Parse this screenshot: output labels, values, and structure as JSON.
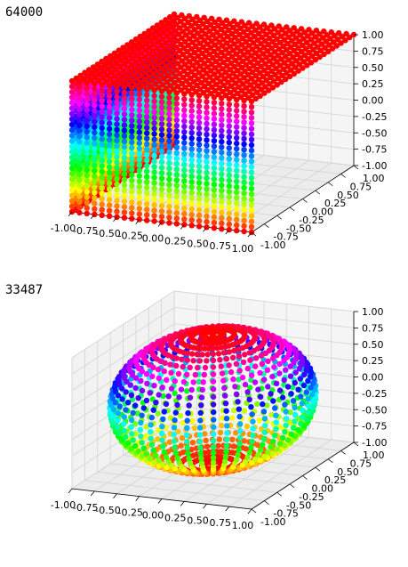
{
  "outputs": [
    {
      "text": "64000",
      "chart_data": {
        "type": "scatter3d",
        "shape": "cube",
        "point_count": 64000,
        "x_range": [
          -1.0,
          1.0
        ],
        "y_range": [
          -1.0,
          1.0
        ],
        "z_range": [
          -1.0,
          1.0
        ],
        "colormap": "hsv by z",
        "x_ticks": [
          "-1.00",
          "-0.75",
          "-0.50",
          "-0.25",
          "0.00",
          "0.25",
          "0.50",
          "0.75",
          "1.00"
        ],
        "y_ticks": [
          "-1.00",
          "-0.75",
          "-0.50",
          "-0.25",
          "0.00",
          "0.25",
          "0.50",
          "0.75",
          "1.00"
        ],
        "z_ticks": [
          "-1.00",
          "-0.75",
          "-0.50",
          "-0.25",
          "0.00",
          "0.25",
          "0.50",
          "0.75",
          "1.00"
        ],
        "grid": true
      }
    },
    {
      "text": "33487",
      "chart_data": {
        "type": "scatter3d",
        "shape": "sphere",
        "point_count": 33487,
        "x_range": [
          -1.0,
          1.0
        ],
        "y_range": [
          -1.0,
          1.0
        ],
        "z_range": [
          -1.0,
          1.0
        ],
        "colormap": "hsv by z",
        "x_ticks": [
          "-1.00",
          "-0.75",
          "-0.50",
          "-0.25",
          "0.00",
          "0.25",
          "0.50",
          "0.75",
          "1.00"
        ],
        "y_ticks": [
          "-1.00",
          "-0.75",
          "-0.50",
          "-0.25",
          "0.00",
          "0.25",
          "0.50",
          "0.75",
          "1.00"
        ],
        "z_ticks": [
          "-1.00",
          "-0.75",
          "-0.50",
          "-0.25",
          "0.00",
          "0.25",
          "0.50",
          "0.75",
          "1.00"
        ],
        "grid": true
      }
    }
  ]
}
